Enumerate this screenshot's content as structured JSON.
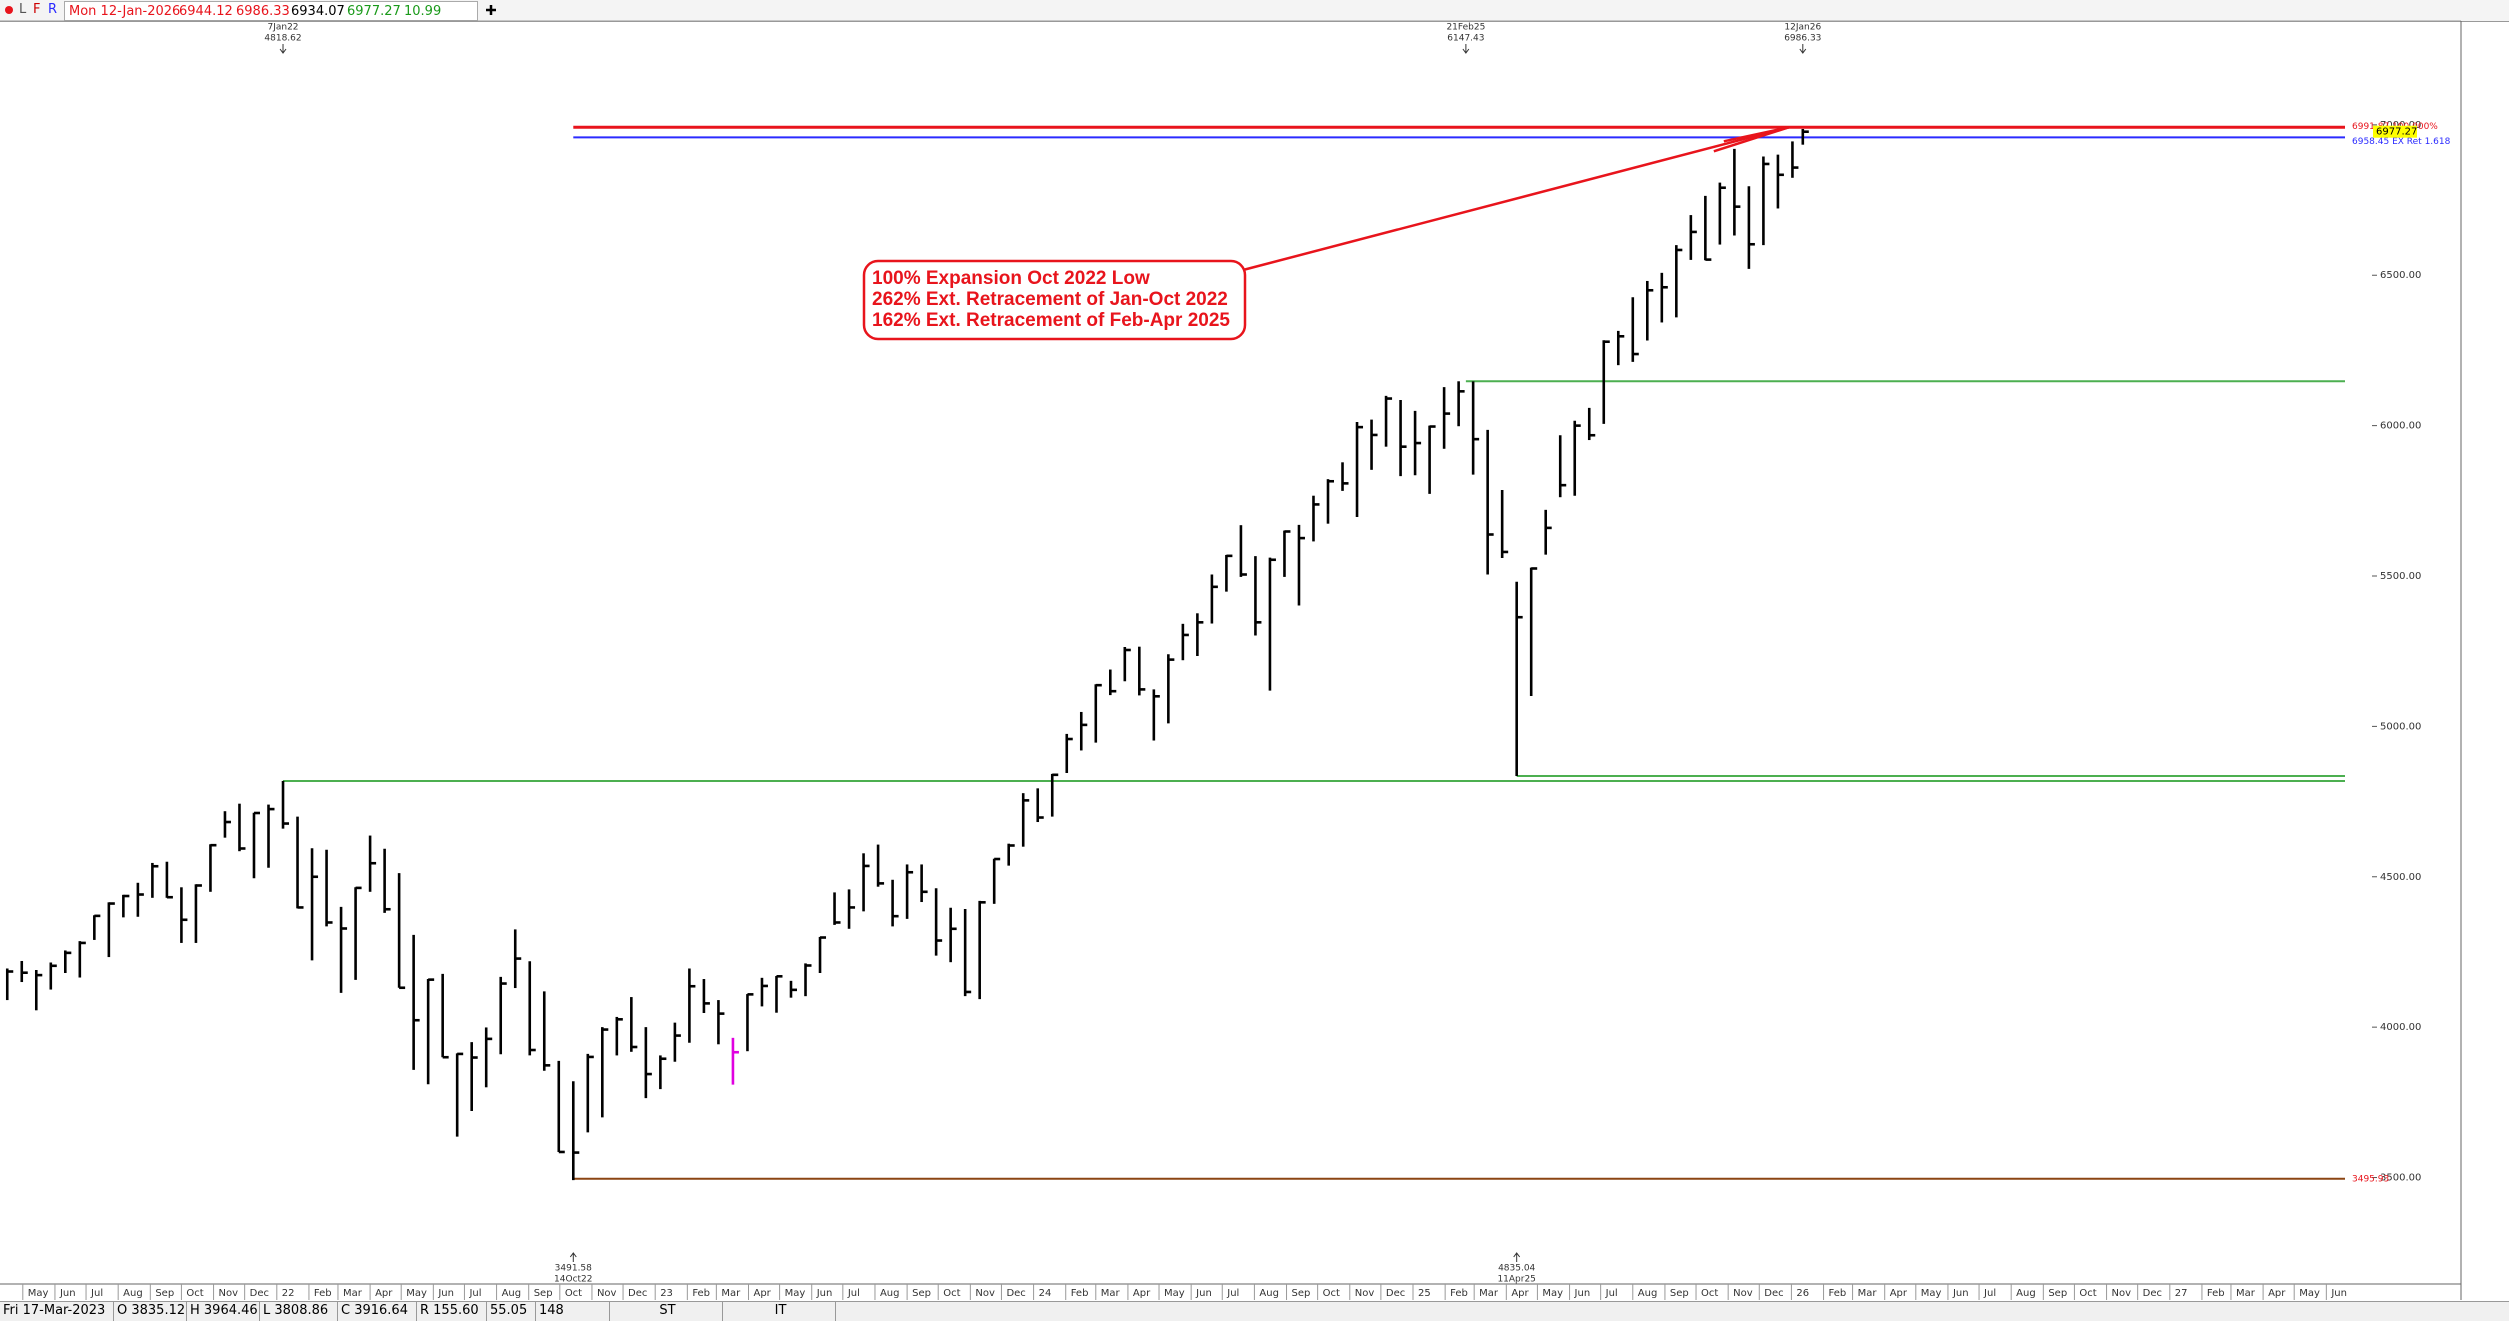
{
  "header": {
    "buttons": [
      "L",
      "F",
      "R"
    ],
    "date": "Mon 12-Jan-2026",
    "open": "6944.12",
    "high": "6986.33",
    "low": "6934.07",
    "close": "6977.27",
    "change": "10.99"
  },
  "footer": {
    "cells": [
      "Fri 17-Mar-2023",
      "O 3835.12",
      "H 3964.46",
      "L 3808.86",
      "C 3916.64",
      "R 155.60",
      "55.05",
      "148",
      "ST",
      "IT"
    ]
  },
  "chart_data": {
    "type": "ohlc",
    "color": "#000000",
    "highlight": {
      "x": "2023-03-17",
      "color": "#e000e0"
    },
    "last_price_color": "#ffff00",
    "xlim": [
      "2021-04-09",
      "2027-06-19"
    ],
    "ylim": [
      3146,
      7342
    ],
    "yticks": [
      {
        "value": 3500,
        "label": "3500.00"
      },
      {
        "value": 4000,
        "label": "4000.00"
      },
      {
        "value": 4500,
        "label": "4500.00"
      },
      {
        "value": 5000,
        "label": "5000.00"
      },
      {
        "value": 5500,
        "label": "5500.00"
      },
      {
        "value": 6000,
        "label": "6000.00"
      },
      {
        "value": 6500,
        "label": "6500.00"
      },
      {
        "value": 7000,
        "label": "7000.00"
      }
    ],
    "xticks": [
      {
        "value": "2021-05-01",
        "label": "May"
      },
      {
        "value": "2021-06-01",
        "label": "Jun"
      },
      {
        "value": "2021-07-01",
        "label": "Jul"
      },
      {
        "value": "2021-08-01",
        "label": "Aug"
      },
      {
        "value": "2021-09-01",
        "label": "Sep"
      },
      {
        "value": "2021-10-01",
        "label": "Oct"
      },
      {
        "value": "2021-11-01",
        "label": "Nov"
      },
      {
        "value": "2021-12-01",
        "label": "Dec"
      },
      {
        "value": "2022-01-01",
        "label": "22"
      },
      {
        "value": "2022-02-01",
        "label": "Feb"
      },
      {
        "value": "2022-03-01",
        "label": "Mar"
      },
      {
        "value": "2022-04-01",
        "label": "Apr"
      },
      {
        "value": "2022-05-01",
        "label": "May"
      },
      {
        "value": "2022-06-01",
        "label": "Jun"
      },
      {
        "value": "2022-07-01",
        "label": "Jul"
      },
      {
        "value": "2022-08-01",
        "label": "Aug"
      },
      {
        "value": "2022-09-01",
        "label": "Sep"
      },
      {
        "value": "2022-10-01",
        "label": "Oct"
      },
      {
        "value": "2022-11-01",
        "label": "Nov"
      },
      {
        "value": "2022-12-01",
        "label": "Dec"
      },
      {
        "value": "2023-01-01",
        "label": "23"
      },
      {
        "value": "2023-02-01",
        "label": "Feb"
      },
      {
        "value": "2023-03-01",
        "label": "Mar"
      },
      {
        "value": "2023-04-01",
        "label": "Apr"
      },
      {
        "value": "2023-05-01",
        "label": "May"
      },
      {
        "value": "2023-06-01",
        "label": "Jun"
      },
      {
        "value": "2023-07-01",
        "label": "Jul"
      },
      {
        "value": "2023-08-01",
        "label": "Aug"
      },
      {
        "value": "2023-09-01",
        "label": "Sep"
      },
      {
        "value": "2023-10-01",
        "label": "Oct"
      },
      {
        "value": "2023-11-01",
        "label": "Nov"
      },
      {
        "value": "2023-12-01",
        "label": "Dec"
      },
      {
        "value": "2024-01-01",
        "label": "24"
      },
      {
        "value": "2024-02-01",
        "label": "Feb"
      },
      {
        "value": "2024-03-01",
        "label": "Mar"
      },
      {
        "value": "2024-04-01",
        "label": "Apr"
      },
      {
        "value": "2024-05-01",
        "label": "May"
      },
      {
        "value": "2024-06-01",
        "label": "Jun"
      },
      {
        "value": "2024-07-01",
        "label": "Jul"
      },
      {
        "value": "2024-08-01",
        "label": "Aug"
      },
      {
        "value": "2024-09-01",
        "label": "Sep"
      },
      {
        "value": "2024-10-01",
        "label": "Oct"
      },
      {
        "value": "2024-11-01",
        "label": "Nov"
      },
      {
        "value": "2024-12-01",
        "label": "Dec"
      },
      {
        "value": "2025-01-01",
        "label": "25"
      },
      {
        "value": "2025-02-01",
        "label": "Feb"
      },
      {
        "value": "2025-03-01",
        "label": "Mar"
      },
      {
        "value": "2025-04-01",
        "label": "Apr"
      },
      {
        "value": "2025-05-01",
        "label": "May"
      },
      {
        "value": "2025-06-01",
        "label": "Jun"
      },
      {
        "value": "2025-07-01",
        "label": "Jul"
      },
      {
        "value": "2025-08-01",
        "label": "Aug"
      },
      {
        "value": "2025-09-01",
        "label": "Sep"
      },
      {
        "value": "2025-10-01",
        "label": "Oct"
      },
      {
        "value": "2025-11-01",
        "label": "Nov"
      },
      {
        "value": "2025-12-01",
        "label": "Dec"
      },
      {
        "value": "2026-01-01",
        "label": "26"
      },
      {
        "value": "2026-02-01",
        "label": "Feb"
      },
      {
        "value": "2026-03-01",
        "label": "Mar"
      },
      {
        "value": "2026-04-01",
        "label": "Apr"
      },
      {
        "value": "2026-05-01",
        "label": "May"
      },
      {
        "value": "2026-06-01",
        "label": "Jun"
      },
      {
        "value": "2026-07-01",
        "label": "Jul"
      },
      {
        "value": "2026-08-01",
        "label": "Aug"
      },
      {
        "value": "2026-09-01",
        "label": "Sep"
      },
      {
        "value": "2026-10-01",
        "label": "Oct"
      },
      {
        "value": "2026-11-01",
        "label": "Nov"
      },
      {
        "value": "2026-12-01",
        "label": "Dec"
      },
      {
        "value": "2027-01-01",
        "label": "27"
      },
      {
        "value": "2027-02-01",
        "label": "Feb"
      },
      {
        "value": "2027-03-01",
        "label": "Mar"
      },
      {
        "value": "2027-04-01",
        "label": "Apr"
      },
      {
        "value": "2027-05-01",
        "label": "May"
      },
      {
        "value": "2027-06-01",
        "label": "Jun"
      }
    ],
    "x": [
      "2021-04-16",
      "2021-04-30",
      "2021-05-14",
      "2021-05-28",
      "2021-06-11",
      "2021-06-25",
      "2021-07-09",
      "2021-07-23",
      "2021-08-06",
      "2021-08-20",
      "2021-09-03",
      "2021-09-17",
      "2021-10-01",
      "2021-10-15",
      "2021-10-29",
      "2021-11-12",
      "2021-11-26",
      "2021-12-10",
      "2021-12-24",
      "2022-01-07",
      "2022-01-21",
      "2022-02-04",
      "2022-02-18",
      "2022-03-04",
      "2022-03-18",
      "2022-04-01",
      "2022-04-15",
      "2022-04-29",
      "2022-05-13",
      "2022-05-27",
      "2022-06-10",
      "2022-06-24",
      "2022-07-08",
      "2022-07-22",
      "2022-08-05",
      "2022-08-19",
      "2022-09-02",
      "2022-09-16",
      "2022-09-30",
      "2022-10-14",
      "2022-10-28",
      "2022-11-11",
      "2022-11-25",
      "2022-12-09",
      "2022-12-23",
      "2023-01-06",
      "2023-01-20",
      "2023-02-03",
      "2023-02-17",
      "2023-03-03",
      "2023-03-17",
      "2023-03-31",
      "2023-04-14",
      "2023-04-28",
      "2023-05-12",
      "2023-05-26",
      "2023-06-09",
      "2023-06-23",
      "2023-07-07",
      "2023-07-21",
      "2023-08-04",
      "2023-08-18",
      "2023-09-01",
      "2023-09-15",
      "2023-09-29",
      "2023-10-13",
      "2023-10-27",
      "2023-11-10",
      "2023-11-24",
      "2023-12-08",
      "2023-12-22",
      "2024-01-05",
      "2024-01-19",
      "2024-02-02",
      "2024-02-16",
      "2024-03-01",
      "2024-03-15",
      "2024-03-29",
      "2024-04-12",
      "2024-04-26",
      "2024-05-10",
      "2024-05-24",
      "2024-06-07",
      "2024-06-21",
      "2024-07-05",
      "2024-07-19",
      "2024-08-02",
      "2024-08-16",
      "2024-08-30",
      "2024-09-13",
      "2024-09-27",
      "2024-10-11",
      "2024-10-25",
      "2024-11-08",
      "2024-11-22",
      "2024-12-06",
      "2024-12-20",
      "2025-01-03",
      "2025-01-17",
      "2025-01-31",
      "2025-02-14",
      "2025-02-28",
      "2025-03-14",
      "2025-03-28",
      "2025-04-11",
      "2025-04-25",
      "2025-05-09",
      "2025-05-23",
      "2025-06-06",
      "2025-06-20",
      "2025-07-04",
      "2025-07-18",
      "2025-08-01",
      "2025-08-15",
      "2025-08-29",
      "2025-09-12",
      "2025-09-26",
      "2025-10-10",
      "2025-10-24",
      "2025-11-07",
      "2025-11-21",
      "2025-12-05",
      "2025-12-19",
      "2026-01-02",
      "2026-01-12"
    ],
    "high": [
      4195,
      4220,
      4190,
      4215,
      4255,
      4286,
      4372,
      4415,
      4440,
      4480,
      4546,
      4550,
      4465,
      4475,
      4608,
      4718,
      4743,
      4713,
      4740,
      4818.62,
      4700,
      4595,
      4590,
      4400,
      4465,
      4637,
      4593,
      4512,
      4307,
      4160,
      4177,
      3913,
      3950,
      3999,
      4167,
      4325,
      4219,
      4119,
      3888,
      3820,
      3911,
      4000,
      4034,
      4100,
      4000,
      3906,
      4015,
      4195,
      4160,
      4090,
      3964.46,
      4110,
      4164,
      4170,
      4154,
      4212,
      4300,
      4448,
      4458,
      4578,
      4607,
      4490,
      4541,
      4541,
      4462,
      4397,
      4393,
      4420,
      4560,
      4610,
      4778,
      4794,
      4842,
      4975,
      5048,
      5140,
      5189,
      5264,
      5265,
      5123,
      5240,
      5341,
      5376,
      5505,
      5570,
      5669,
      5566,
      5561,
      5651,
      5670,
      5767,
      5822,
      5878,
      6012,
      6020,
      6099,
      6085,
      6049,
      6000,
      6128,
      6147.43,
      6147,
      5986,
      5786,
      5481,
      5528,
      5720,
      5968,
      6016,
      6059,
      6284,
      6315,
      6427,
      6481,
      6508,
      6600,
      6700,
      6764,
      6808,
      6920,
      6796,
      6895,
      6901,
      6945,
      6986.33
    ],
    "low": [
      4090,
      4150,
      4056,
      4125,
      4180,
      4165,
      4290,
      4233,
      4365,
      4367,
      4430,
      4430,
      4280,
      4280,
      4450,
      4630,
      4585,
      4495,
      4530,
      4660,
      4395,
      4222,
      4335,
      4114,
      4157,
      4450,
      4380,
      4131,
      3858,
      3810,
      3900,
      3636,
      3721,
      3800,
      3910,
      4130,
      3906,
      3855,
      3585,
      3491.58,
      3650,
      3700,
      3906,
      3918,
      3764,
      3794,
      3885,
      3948,
      4047,
      3943,
      3808.86,
      3920,
      4069,
      4048,
      4098,
      4103,
      4180,
      4340,
      4327,
      4385,
      4467,
      4335,
      4360,
      4416,
      4238,
      4216,
      4103,
      4093,
      4410,
      4537,
      4600,
      4682,
      4700,
      4845,
      4920,
      4946,
      5104,
      5150,
      5103,
      4953,
      5010,
      5220,
      5234,
      5342,
      5448,
      5497,
      5302,
      5119,
      5497,
      5402,
      5615,
      5674,
      5783,
      5696,
      5853,
      5930,
      5832,
      5835,
      5773,
      5923,
      5998,
      5837,
      5505,
      5560,
      4835.04,
      5101,
      5571,
      5762,
      5767,
      5952,
      6006,
      6201,
      6212,
      6283,
      6343,
      6360,
      6551,
      6550,
      6602,
      6632,
      6521,
      6600,
      6722,
      6824,
      6934.07
    ],
    "close": [
      4185,
      4181,
      4173,
      4204,
      4247,
      4280,
      4370,
      4411,
      4436,
      4441,
      4535,
      4432,
      4357,
      4471,
      4605,
      4682,
      4594,
      4712,
      4725,
      4677,
      4398,
      4500,
      4348,
      4328,
      4463,
      4545,
      4392,
      4131,
      4023,
      4158,
      3900,
      3911,
      3899,
      3961,
      4145,
      4228,
      3924,
      3873,
      3585,
      3583,
      3901,
      3992,
      4026,
      3934,
      3844,
      3895,
      3972,
      4136,
      4079,
      4045,
      3916.64,
      4109,
      4137,
      4169,
      4124,
      4205,
      4298,
      4348,
      4398,
      4536,
      4478,
      4369,
      4515,
      4450,
      4288,
      4327,
      4117,
      4415,
      4559,
      4604,
      4754,
      4697,
      4839,
      4958,
      5005,
      5137,
      5117,
      5254,
      5123,
      5100,
      5222,
      5304,
      5346,
      5464,
      5567,
      5505,
      5346,
      5554,
      5648,
      5626,
      5738,
      5815,
      5808,
      5995,
      5969,
      6090,
      5930,
      5942,
      5997,
      6040,
      6114,
      5955,
      5638,
      5580,
      5363,
      5525,
      5660,
      5802,
      6000,
      5968,
      6279,
      6297,
      6238,
      6450,
      6460,
      6584,
      6644,
      6552,
      6791,
      6728,
      6603,
      6870,
      6834,
      6858,
      6977.27
    ],
    "levels": [
      {
        "value": 6991.87,
        "label": "6991.87  100.000%",
        "color": "#e8141c",
        "from": "2022-10-14"
      },
      {
        "value": 6958.45,
        "label": "6958.45 EX Ret 1.618",
        "color": "#2b2bff",
        "from": "2022-10-14"
      },
      {
        "value": 6147.43,
        "color": "#4caf50",
        "from": "2025-02-21"
      },
      {
        "value": 4818.62,
        "color": "#4caf50",
        "from": "2022-01-07"
      },
      {
        "value": 4835.04,
        "color": "#4caf50",
        "from": "2025-04-11"
      },
      {
        "value": 3495.93,
        "color": "#8b4513",
        "from": "2022-10-14",
        "value_label": true
      }
    ],
    "top_annotations": [
      {
        "date": "7Jan22",
        "value": 4818.62
      },
      {
        "date": "21Feb25",
        "value": 6147.43
      },
      {
        "date": "12Jan26",
        "value": 6986.33
      }
    ],
    "bottom_annotations": [
      {
        "value": 3491.58,
        "date": "14Oct22"
      },
      {
        "value": 4835.04,
        "date": "11Apr25"
      }
    ],
    "callout": [
      "100% Expansion Oct 2022 Low",
      "262% Ext. Retracement of Jan-Oct 2022",
      "162% Ext. Retracement of Feb-Apr 2025"
    ]
  }
}
